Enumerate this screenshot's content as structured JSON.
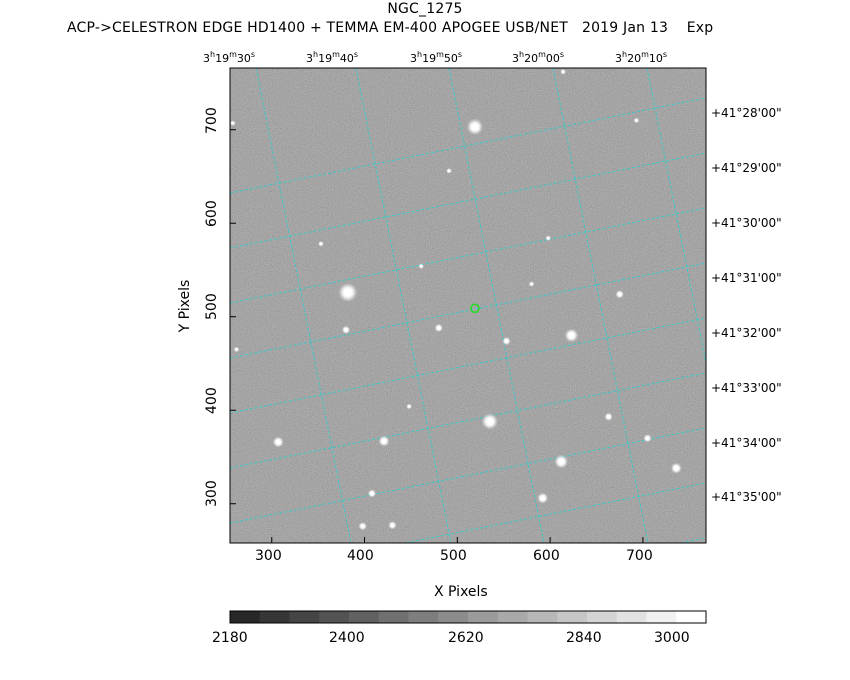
{
  "header": {
    "object_name": "NGC_1275",
    "subtitle": "ACP->CELESTRON EDGE HD1400 + TEMMA EM-400 APOGEE USB/NET   2019 Jan 13    Exp"
  },
  "colors": {
    "background": "#ffffff",
    "image_gray": "#8a8a8a",
    "grid_cyan": "#3cc8c8",
    "target_marker": "#22dd22"
  },
  "axes": {
    "x_label": "X Pixels",
    "y_label": "Y Pixels",
    "x_ticks": [
      "300",
      "400",
      "500",
      "600",
      "700"
    ],
    "y_ticks": [
      "700",
      "600",
      "500",
      "400",
      "300"
    ],
    "x_range": [
      255,
      768
    ],
    "y_range": [
      258,
      766
    ]
  },
  "ra_labels": [
    {
      "h": "3",
      "m": "19",
      "s": "30"
    },
    {
      "h": "3",
      "m": "19",
      "s": "40"
    },
    {
      "h": "3",
      "m": "19",
      "s": "50"
    },
    {
      "h": "3",
      "m": "20",
      "s": "00"
    },
    {
      "h": "3",
      "m": "20",
      "s": "10"
    }
  ],
  "dec_labels": [
    "+41°28'00\"",
    "+41°29'00\"",
    "+41°30'00\"",
    "+41°31'00\"",
    "+41°32'00\"",
    "+41°33'00\"",
    "+41°34'00\"",
    "+41°35'00\""
  ],
  "colorbar": {
    "min": 2180,
    "max": 3020,
    "labels": [
      "2180",
      "2400",
      "2620",
      "2840",
      "3000"
    ]
  },
  "stars": [
    {
      "x": 519,
      "y": 703,
      "r": 6
    },
    {
      "x": 382,
      "y": 526,
      "r": 7
    },
    {
      "x": 623,
      "y": 480,
      "r": 5
    },
    {
      "x": 535,
      "y": 388,
      "r": 6
    },
    {
      "x": 480,
      "y": 488,
      "r": 3
    },
    {
      "x": 553,
      "y": 474,
      "r": 3
    },
    {
      "x": 675,
      "y": 524,
      "r": 3
    },
    {
      "x": 380,
      "y": 486,
      "r": 3
    },
    {
      "x": 307,
      "y": 366,
      "r": 4
    },
    {
      "x": 421,
      "y": 367,
      "r": 4
    },
    {
      "x": 461,
      "y": 554,
      "r": 2
    },
    {
      "x": 491,
      "y": 656,
      "r": 2
    },
    {
      "x": 598,
      "y": 584,
      "r": 2
    },
    {
      "x": 408,
      "y": 311,
      "r": 3
    },
    {
      "x": 398,
      "y": 276,
      "r": 3
    },
    {
      "x": 430,
      "y": 277,
      "r": 3
    },
    {
      "x": 592,
      "y": 306,
      "r": 4
    },
    {
      "x": 612,
      "y": 345,
      "r": 5
    },
    {
      "x": 705,
      "y": 370,
      "r": 3
    },
    {
      "x": 736,
      "y": 338,
      "r": 4
    },
    {
      "x": 663,
      "y": 393,
      "r": 3
    },
    {
      "x": 448,
      "y": 404,
      "r": 2
    },
    {
      "x": 258,
      "y": 707,
      "r": 2
    },
    {
      "x": 353,
      "y": 578,
      "r": 2
    },
    {
      "x": 580,
      "y": 535,
      "r": 2
    },
    {
      "x": 614,
      "y": 762,
      "r": 2
    },
    {
      "x": 262,
      "y": 465,
      "r": 2
    },
    {
      "x": 693,
      "y": 710,
      "r": 2
    }
  ],
  "target": {
    "x": 519,
    "y": 509
  }
}
